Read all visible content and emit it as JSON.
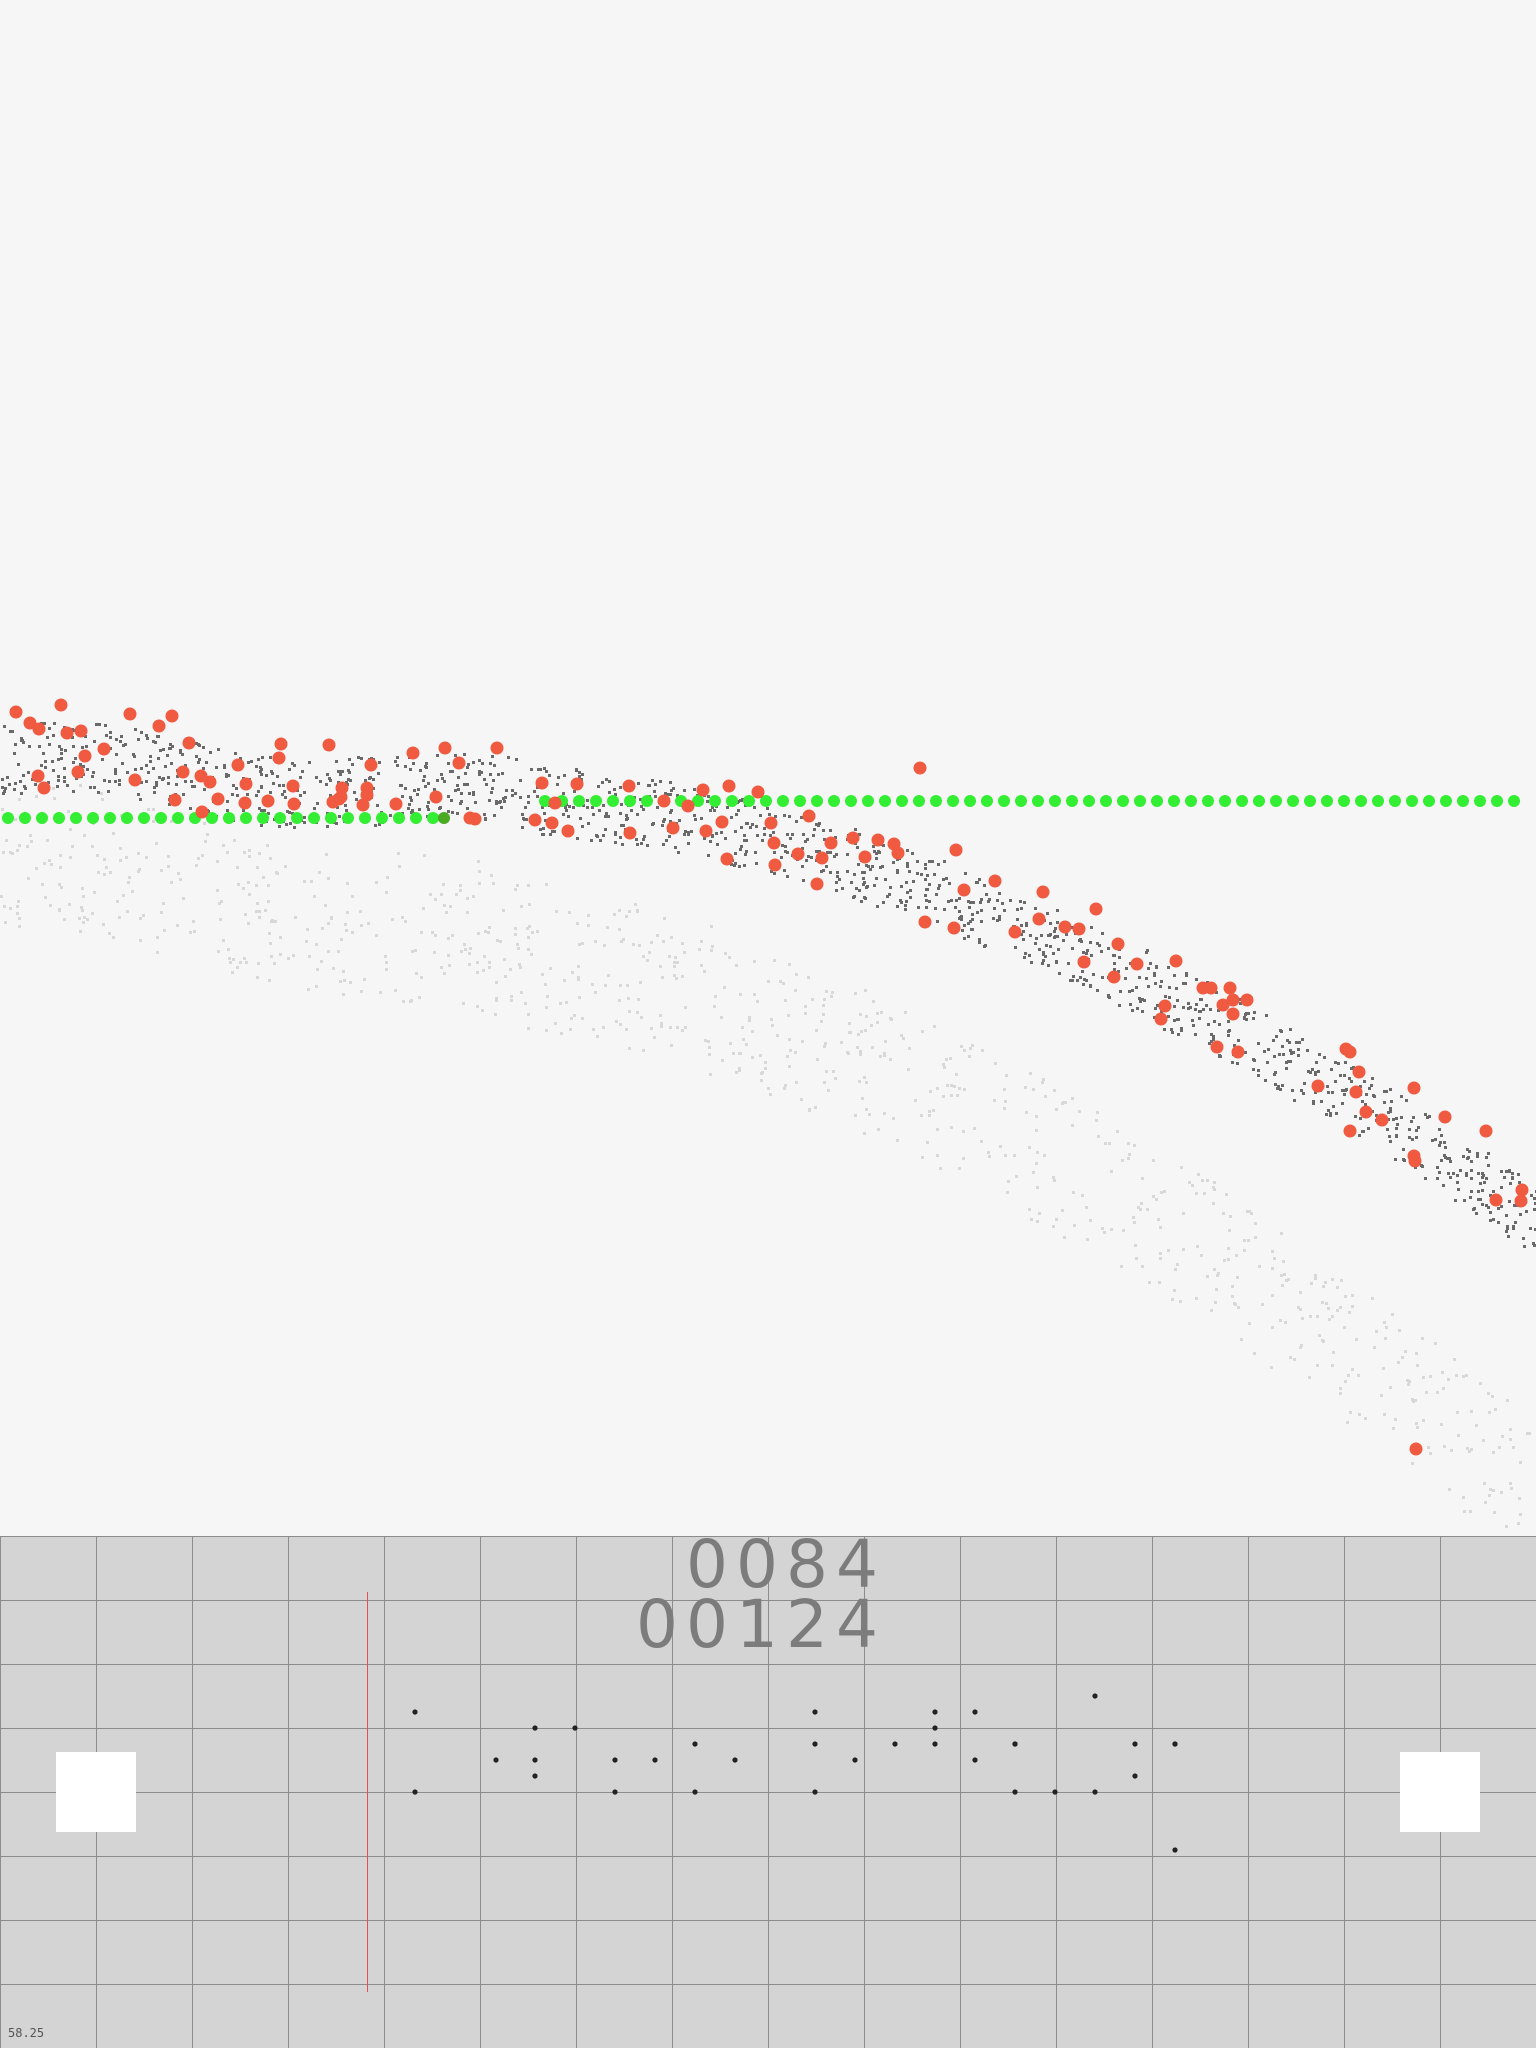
{
  "hud": {
    "score_top": "0084",
    "score_bottom": "00124",
    "fps": "58.25"
  },
  "colors": {
    "background": "#f6f6f6",
    "panel": "#d4d4d4",
    "grid_line": "#8c8c8c",
    "hud_text": "#7c7c7c",
    "enemy": "#f05a40",
    "player_chain": "#33ee33",
    "player_marker": "#4aaa22",
    "terrain_active": "#6a6a6a",
    "terrain_trail": "#d8d8d8",
    "playhead": "#e05050",
    "note": "#222222"
  },
  "icons": {
    "left_pad": "square-button-icon",
    "right_pad": "square-button-icon"
  }
}
